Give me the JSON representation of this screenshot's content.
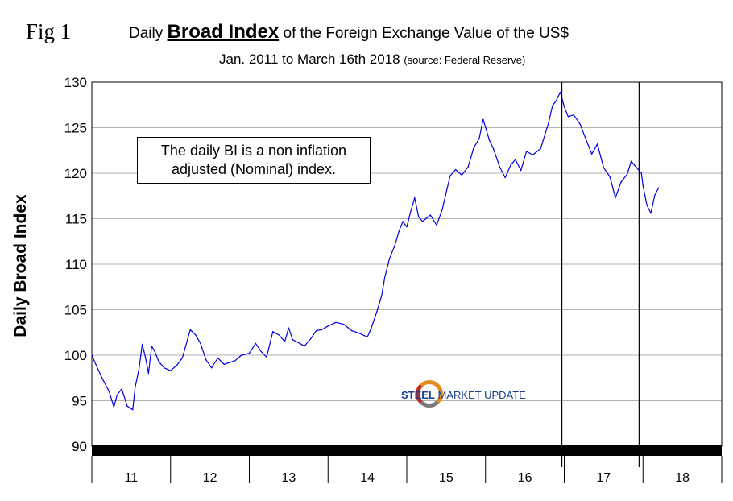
{
  "figure_label": "Fig 1",
  "title": {
    "prefix": "Daily ",
    "emphasis": "Broad Index",
    "suffix": " of the Foreign Exchange Value of the US$"
  },
  "subtitle": {
    "range": "Jan. 2011 to March 16th 2018 ",
    "source": "(source: Federal Reserve)"
  },
  "annotation": {
    "line1": "The daily BI is a non inflation",
    "line2": "adjusted (Nominal) index."
  },
  "logo": {
    "bold": "STEEL",
    "rest": " MARKET UPDATE"
  },
  "colors": {
    "series": "#0000e0",
    "grid": "#b0b0b0",
    "axis": "#000000"
  },
  "chart_data": {
    "type": "line",
    "title": "Daily Broad Index of the Foreign Exchange Value of the US$",
    "ylabel": "Daily Broad Index",
    "xlabel": "",
    "ylim": [
      90,
      130
    ],
    "yticks": [
      90,
      95,
      100,
      105,
      110,
      115,
      120,
      125,
      130
    ],
    "xlim": [
      2011,
      2019
    ],
    "categories": [
      "11",
      "12",
      "13",
      "14",
      "15",
      "16",
      "17",
      "18"
    ],
    "grid": true,
    "vertical_markers": [
      2016.97,
      2017.95
    ],
    "series": [
      {
        "name": "Daily Broad Index",
        "x": [
          2011.0,
          2011.06,
          2011.13,
          2011.22,
          2011.28,
          2011.32,
          2011.38,
          2011.45,
          2011.52,
          2011.55,
          2011.6,
          2011.64,
          2011.68,
          2011.72,
          2011.76,
          2011.8,
          2011.85,
          2011.92,
          2012.0,
          2012.08,
          2012.15,
          2012.25,
          2012.32,
          2012.38,
          2012.45,
          2012.52,
          2012.6,
          2012.68,
          2012.75,
          2012.82,
          2012.9,
          2013.0,
          2013.08,
          2013.15,
          2013.22,
          2013.3,
          2013.38,
          2013.45,
          2013.5,
          2013.55,
          2013.62,
          2013.7,
          2013.78,
          2013.85,
          2013.92,
          2014.0,
          2014.1,
          2014.2,
          2014.3,
          2014.4,
          2014.5,
          2014.55,
          2014.62,
          2014.68,
          2014.72,
          2014.78,
          2014.85,
          2014.9,
          2014.95,
          2015.0,
          2015.05,
          2015.1,
          2015.15,
          2015.2,
          2015.3,
          2015.38,
          2015.45,
          2015.55,
          2015.62,
          2015.7,
          2015.78,
          2015.85,
          2015.92,
          2015.97,
          2016.05,
          2016.1,
          2016.18,
          2016.25,
          2016.32,
          2016.38,
          2016.45,
          2016.52,
          2016.6,
          2016.7,
          2016.8,
          2016.85,
          2016.9,
          2016.95,
          2017.0,
          2017.05,
          2017.12,
          2017.2,
          2017.28,
          2017.35,
          2017.42,
          2017.5,
          2017.58,
          2017.65,
          2017.72,
          2017.8,
          2017.85,
          2017.92,
          2017.98,
          2018.0,
          2018.05,
          2018.1,
          2018.15,
          2018.2
        ],
        "values": [
          100.0,
          98.8,
          97.5,
          96.0,
          94.3,
          95.6,
          96.3,
          94.4,
          94.0,
          96.5,
          98.5,
          101.2,
          99.8,
          98.0,
          101.0,
          100.4,
          99.3,
          98.6,
          98.3,
          98.9,
          99.7,
          102.8,
          102.2,
          101.3,
          99.5,
          98.6,
          99.7,
          99.0,
          99.2,
          99.4,
          100.0,
          100.2,
          101.3,
          100.4,
          99.8,
          102.6,
          102.2,
          101.5,
          103.0,
          101.7,
          101.4,
          101.0,
          101.8,
          102.7,
          102.8,
          103.2,
          103.6,
          103.4,
          102.7,
          102.4,
          102.0,
          103.0,
          104.8,
          106.5,
          108.5,
          110.6,
          112.1,
          113.6,
          114.7,
          114.1,
          115.8,
          117.3,
          115.2,
          114.7,
          115.4,
          114.3,
          116.0,
          119.7,
          120.4,
          119.8,
          120.7,
          122.8,
          123.8,
          125.9,
          123.6,
          122.7,
          120.7,
          119.5,
          120.9,
          121.5,
          120.3,
          122.4,
          122.0,
          122.7,
          125.5,
          127.4,
          128.0,
          128.9,
          127.3,
          126.2,
          126.4,
          125.4,
          123.6,
          122.1,
          123.2,
          120.6,
          119.6,
          117.3,
          119.0,
          119.9,
          121.3,
          120.6,
          120.0,
          118.6,
          116.5,
          115.6,
          117.6,
          118.4
        ]
      }
    ]
  }
}
